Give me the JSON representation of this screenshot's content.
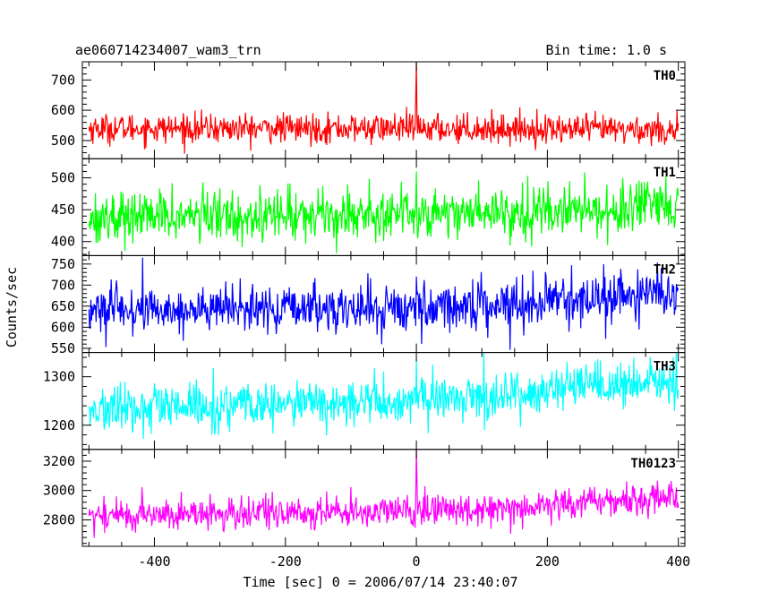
{
  "header": {
    "title": "ae060714234007_wam3_trn",
    "bin_time": "Bin time: 1.0 s"
  },
  "chart_data": {
    "type": "line",
    "xlabel": "Time [sec] 0 = 2006/07/14 23:40:07",
    "ylabel": "Counts/sec",
    "xlim": [
      -510,
      410
    ],
    "x_ticks": [
      -400,
      -200,
      0,
      200,
      400
    ],
    "x_step": 1,
    "x_start": -500,
    "x_end": 400,
    "panels": [
      {
        "name": "TH0",
        "color": "#ff0000",
        "ylim": [
          440,
          760
        ],
        "y_ticks": [
          500,
          600,
          700
        ],
        "trend": [
          [
            -500,
            540
          ],
          [
            0,
            540
          ],
          [
            400,
            535
          ]
        ],
        "noise_sd": 24,
        "spikes": [
          [
            0,
            760
          ],
          [
            -1,
            640
          ]
        ]
      },
      {
        "name": "TH1",
        "color": "#00ff00",
        "ylim": [
          378,
          530
        ],
        "y_ticks": [
          400,
          450,
          500
        ],
        "trend": [
          [
            -500,
            438
          ],
          [
            0,
            445
          ],
          [
            400,
            452
          ]
        ],
        "noise_sd": 20,
        "spikes": [
          [
            0,
            510
          ]
        ]
      },
      {
        "name": "TH2",
        "color": "#0000ff",
        "ylim": [
          540,
          770
        ],
        "y_ticks": [
          550,
          600,
          650,
          700,
          750
        ],
        "trend": [
          [
            -500,
            640
          ],
          [
            0,
            645
          ],
          [
            400,
            680
          ]
        ],
        "noise_sd": 28,
        "spikes": [
          [
            0,
            720
          ]
        ]
      },
      {
        "name": "TH3",
        "color": "#00ffff",
        "ylim": [
          1150,
          1350
        ],
        "y_ticks": [
          1200,
          1300
        ],
        "trend": [
          [
            -500,
            1230
          ],
          [
            0,
            1250
          ],
          [
            400,
            1290
          ]
        ],
        "noise_sd": 24,
        "spikes": [
          [
            0,
            1335
          ]
        ]
      },
      {
        "name": "TH0123",
        "color": "#ff00ff",
        "ylim": [
          2620,
          3280
        ],
        "y_ticks": [
          2800,
          3000,
          3200
        ],
        "trend": [
          [
            -500,
            2830
          ],
          [
            0,
            2860
          ],
          [
            200,
            2900
          ],
          [
            400,
            2960
          ]
        ],
        "noise_sd": 55,
        "spikes": [
          [
            0,
            3280
          ],
          [
            1,
            3050
          ]
        ]
      }
    ]
  }
}
